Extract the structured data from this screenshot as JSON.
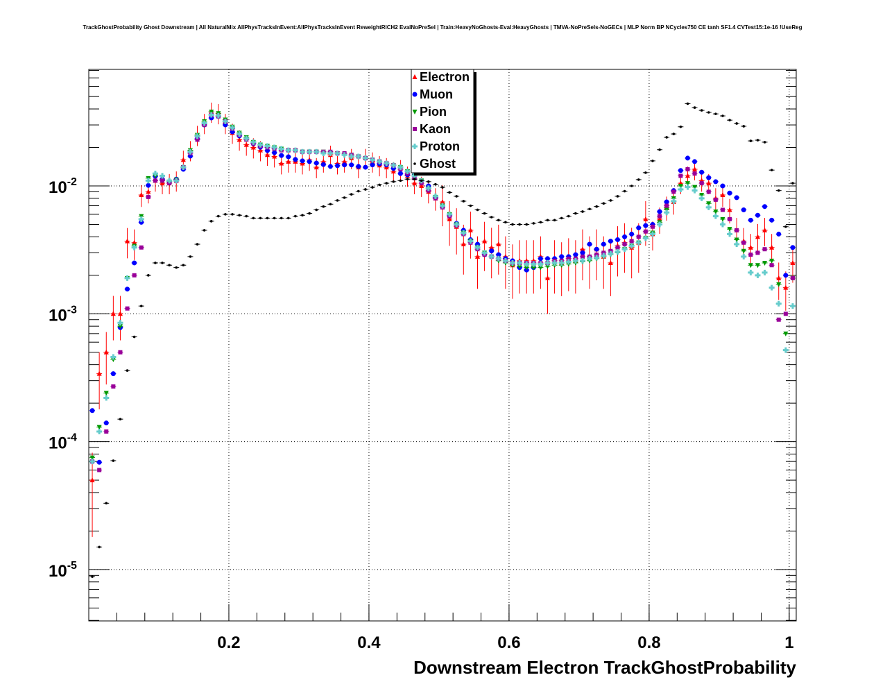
{
  "chart_data": {
    "type": "scatter",
    "title": "TrackGhostProbability Ghost Downstream | All NaturalMix AllPhysTracksInEvent:AllPhysTracksInEvent ReweightRICH2 EvalNoPreSel | Train:HeavyNoGhosts-Eval:HeavyGhosts | TMVA-NoPreSels-NoGECs | MLP Norm BP NCycles750 CE tanh SF1.4 CVTest15:1e-16 !UseReg",
    "xlabel": "Downstream Electron TrackGhostProbability",
    "ylabel": "",
    "xlim": [
      0,
      1.01
    ],
    "ylim": [
      4e-06,
      0.082
    ],
    "yscale": "log",
    "grid": true,
    "legend_position": "top-center",
    "x_tick_labels": [
      "0.2",
      "0.4",
      "0.6",
      "0.8",
      "1"
    ],
    "x_ticks": [
      0.2,
      0.4,
      0.6,
      0.8,
      1.0
    ],
    "y_ticks": [
      {
        "value": 0.01,
        "base": "10",
        "exp": "-2"
      },
      {
        "value": 0.001,
        "base": "10",
        "exp": "-3"
      },
      {
        "value": 0.0001,
        "base": "10",
        "exp": "-4"
      },
      {
        "value": 1e-05,
        "base": "10",
        "exp": "-5"
      }
    ],
    "bin_start": 0.005,
    "bin_width": 0.01,
    "series": [
      {
        "name": "Electron",
        "color": "#ff0000",
        "marker": "triangle-up",
        "errors": true,
        "values": [
          5e-05,
          0.00034,
          0.0005,
          0.001,
          0.001,
          0.0037,
          0.0036,
          0.0085,
          0.009,
          0.011,
          0.0105,
          0.0105,
          0.011,
          0.016,
          0.019,
          0.025,
          0.031,
          0.038,
          0.037,
          0.031,
          0.026,
          0.023,
          0.021,
          0.02,
          0.019,
          0.0175,
          0.017,
          0.015,
          0.0155,
          0.0155,
          0.015,
          0.016,
          0.014,
          0.0155,
          0.0175,
          0.015,
          0.0155,
          0.0165,
          0.014,
          0.0165,
          0.0155,
          0.0145,
          0.014,
          0.013,
          0.0135,
          0.012,
          0.0105,
          0.01,
          0.009,
          0.008,
          0.0075,
          0.0055,
          0.0048,
          0.0035,
          0.0045,
          0.0028,
          0.0037,
          0.0033,
          0.0035,
          0.0028,
          0.0024,
          0.0026,
          0.0026,
          0.0026,
          0.0028,
          0.0019,
          0.0026,
          0.0025,
          0.0027,
          0.0026,
          0.0032,
          0.0028,
          0.0032,
          0.0028,
          0.0025,
          0.0034,
          0.0036,
          0.0033,
          0.0036,
          0.0055,
          0.0042,
          0.0055,
          0.0068,
          0.0075,
          0.0105,
          0.012,
          0.0135,
          0.011,
          0.0105,
          0.008,
          0.0085,
          0.0065,
          0.0045,
          0.0037,
          0.0033,
          0.004,
          0.0045,
          0.0033,
          0.0019,
          0.0016,
          0.0025
        ]
      },
      {
        "name": "Muon",
        "color": "#0000ff",
        "marker": "circle",
        "errors": false,
        "values": [
          0.000175,
          6.9e-05,
          0.00014,
          0.00034,
          0.00078,
          0.00156,
          0.0025,
          0.0052,
          0.0101,
          0.0119,
          0.0113,
          0.0108,
          0.0113,
          0.0135,
          0.0171,
          0.0234,
          0.03,
          0.034,
          0.035,
          0.03,
          0.0265,
          0.0246,
          0.0234,
          0.0214,
          0.0201,
          0.0189,
          0.0182,
          0.0173,
          0.0169,
          0.0161,
          0.0157,
          0.0155,
          0.0151,
          0.0147,
          0.0142,
          0.0144,
          0.0146,
          0.0146,
          0.0142,
          0.014,
          0.0146,
          0.0149,
          0.0146,
          0.0137,
          0.0125,
          0.0122,
          0.0122,
          0.011,
          0.01,
          0.0081,
          0.0069,
          0.0059,
          0.0051,
          0.0045,
          0.0038,
          0.0035,
          0.0029,
          0.0031,
          0.0029,
          0.0027,
          0.0026,
          0.0023,
          0.0022,
          0.0023,
          0.0027,
          0.0027,
          0.0027,
          0.0028,
          0.0028,
          0.0029,
          0.003,
          0.0035,
          0.0032,
          0.0035,
          0.0037,
          0.0038,
          0.004,
          0.0042,
          0.0047,
          0.0049,
          0.005,
          0.0063,
          0.0075,
          0.0092,
          0.0132,
          0.0165,
          0.0155,
          0.0128,
          0.0116,
          0.0108,
          0.01,
          0.0088,
          0.0081,
          0.0065,
          0.0054,
          0.0059,
          0.0069,
          0.0054,
          0.0042,
          0.002,
          0.0033
        ]
      },
      {
        "name": "Pion",
        "color": "#009900",
        "marker": "triangle-down",
        "errors": false,
        "values": [
          7.5e-05,
          0.00013,
          0.00024,
          0.00044,
          0.0008,
          0.0019,
          0.0034,
          0.0058,
          0.0115,
          0.012,
          0.011,
          0.0108,
          0.0112,
          0.014,
          0.019,
          0.025,
          0.032,
          0.038,
          0.037,
          0.033,
          0.029,
          0.026,
          0.024,
          0.022,
          0.021,
          0.0205,
          0.02,
          0.0195,
          0.019,
          0.019,
          0.0185,
          0.0185,
          0.0185,
          0.0185,
          0.018,
          0.018,
          0.0175,
          0.0175,
          0.017,
          0.0165,
          0.016,
          0.0155,
          0.015,
          0.0145,
          0.014,
          0.013,
          0.012,
          0.011,
          0.0095,
          0.0082,
          0.007,
          0.006,
          0.005,
          0.0043,
          0.0037,
          0.0033,
          0.003,
          0.0028,
          0.0026,
          0.0025,
          0.0024,
          0.00235,
          0.0023,
          0.0023,
          0.0023,
          0.00235,
          0.0024,
          0.0024,
          0.00245,
          0.0025,
          0.00255,
          0.0026,
          0.0027,
          0.0028,
          0.0029,
          0.003,
          0.0032,
          0.0034,
          0.0036,
          0.0039,
          0.0043,
          0.0052,
          0.0065,
          0.008,
          0.01,
          0.0105,
          0.0098,
          0.0085,
          0.0073,
          0.0063,
          0.0055,
          0.0046,
          0.0038,
          0.0031,
          0.0024,
          0.0024,
          0.0025,
          0.0026,
          0.0017,
          0.0007,
          0.0019
        ]
      },
      {
        "name": "Kaon",
        "color": "#990099",
        "marker": "square",
        "errors": false,
        "values": [
          7e-05,
          6e-05,
          0.00012,
          0.00027,
          0.0005,
          0.0011,
          0.002,
          0.0033,
          0.0082,
          0.011,
          0.011,
          0.0105,
          0.011,
          0.014,
          0.018,
          0.023,
          0.03,
          0.036,
          0.035,
          0.032,
          0.028,
          0.025,
          0.023,
          0.0215,
          0.0205,
          0.02,
          0.0195,
          0.019,
          0.019,
          0.019,
          0.0185,
          0.0185,
          0.0185,
          0.0185,
          0.0185,
          0.018,
          0.018,
          0.0175,
          0.017,
          0.0165,
          0.016,
          0.0155,
          0.015,
          0.0145,
          0.0135,
          0.0125,
          0.0115,
          0.0105,
          0.0092,
          0.008,
          0.0068,
          0.0058,
          0.0049,
          0.0042,
          0.0036,
          0.0032,
          0.0029,
          0.0028,
          0.0027,
          0.0026,
          0.0025,
          0.0025,
          0.0025,
          0.0025,
          0.0025,
          0.0025,
          0.0026,
          0.0026,
          0.0027,
          0.0027,
          0.0028,
          0.0028,
          0.0029,
          0.003,
          0.0031,
          0.0033,
          0.0035,
          0.0037,
          0.004,
          0.0044,
          0.0048,
          0.0058,
          0.007,
          0.009,
          0.012,
          0.0135,
          0.0125,
          0.0105,
          0.009,
          0.0078,
          0.0065,
          0.0055,
          0.0045,
          0.0036,
          0.0029,
          0.003,
          0.0032,
          0.0024,
          0.0009,
          0.001,
          0.0019
        ]
      },
      {
        "name": "Proton",
        "color": "#66cccc",
        "marker": "cross",
        "errors": false,
        "values": [
          7e-05,
          0.00012,
          0.00022,
          0.00046,
          0.00085,
          0.0019,
          0.0033,
          0.0055,
          0.011,
          0.0125,
          0.012,
          0.011,
          0.011,
          0.014,
          0.0185,
          0.0245,
          0.031,
          0.036,
          0.0355,
          0.032,
          0.0285,
          0.0255,
          0.0235,
          0.022,
          0.021,
          0.0205,
          0.02,
          0.0195,
          0.019,
          0.019,
          0.0185,
          0.0185,
          0.0185,
          0.018,
          0.018,
          0.018,
          0.0175,
          0.017,
          0.017,
          0.0165,
          0.016,
          0.0155,
          0.015,
          0.0145,
          0.014,
          0.013,
          0.012,
          0.011,
          0.0096,
          0.0083,
          0.007,
          0.006,
          0.005,
          0.0043,
          0.0037,
          0.0033,
          0.003,
          0.0028,
          0.0027,
          0.0026,
          0.0025,
          0.0025,
          0.00245,
          0.00245,
          0.00245,
          0.0025,
          0.0025,
          0.0025,
          0.00255,
          0.0026,
          0.0026,
          0.0027,
          0.00275,
          0.00285,
          0.00295,
          0.00305,
          0.0032,
          0.0034,
          0.0036,
          0.0039,
          0.0042,
          0.005,
          0.0062,
          0.0076,
          0.0094,
          0.0098,
          0.0092,
          0.008,
          0.0068,
          0.0058,
          0.005,
          0.0042,
          0.0035,
          0.0028,
          0.0021,
          0.002,
          0.0021,
          0.0016,
          0.0012,
          0.00052,
          0.00115
        ]
      },
      {
        "name": "Ghost",
        "color": "#000000",
        "marker": "dot",
        "errors": false,
        "values": [
          8.8e-06,
          1.5e-05,
          3.3e-05,
          7.1e-05,
          0.00015,
          0.00036,
          0.00066,
          0.00115,
          0.002,
          0.0025,
          0.0025,
          0.0024,
          0.0023,
          0.0024,
          0.0028,
          0.0035,
          0.0045,
          0.0053,
          0.0058,
          0.006,
          0.006,
          0.0059,
          0.0058,
          0.0056,
          0.0056,
          0.0056,
          0.0056,
          0.0056,
          0.0056,
          0.0058,
          0.0059,
          0.0061,
          0.0065,
          0.0069,
          0.0072,
          0.0077,
          0.0081,
          0.0086,
          0.0091,
          0.0094,
          0.00975,
          0.0102,
          0.0105,
          0.0108,
          0.011,
          0.0113,
          0.0113,
          0.011,
          0.0108,
          0.0103,
          0.00975,
          0.0089,
          0.0083,
          0.0076,
          0.007,
          0.0065,
          0.0061,
          0.0057,
          0.0054,
          0.0052,
          0.005,
          0.005,
          0.005,
          0.0051,
          0.0052,
          0.0054,
          0.0054,
          0.0056,
          0.0058,
          0.0061,
          0.0063,
          0.0066,
          0.0069,
          0.0073,
          0.0077,
          0.0083,
          0.0091,
          0.01,
          0.0112,
          0.0127,
          0.0157,
          0.0192,
          0.024,
          0.0255,
          0.029,
          0.044,
          0.041,
          0.039,
          0.0376,
          0.0366,
          0.0353,
          0.0327,
          0.0308,
          0.0293,
          0.0225,
          0.0228,
          0.022,
          0.0133,
          0.0092,
          0.0048,
          0.0105
        ]
      }
    ]
  }
}
